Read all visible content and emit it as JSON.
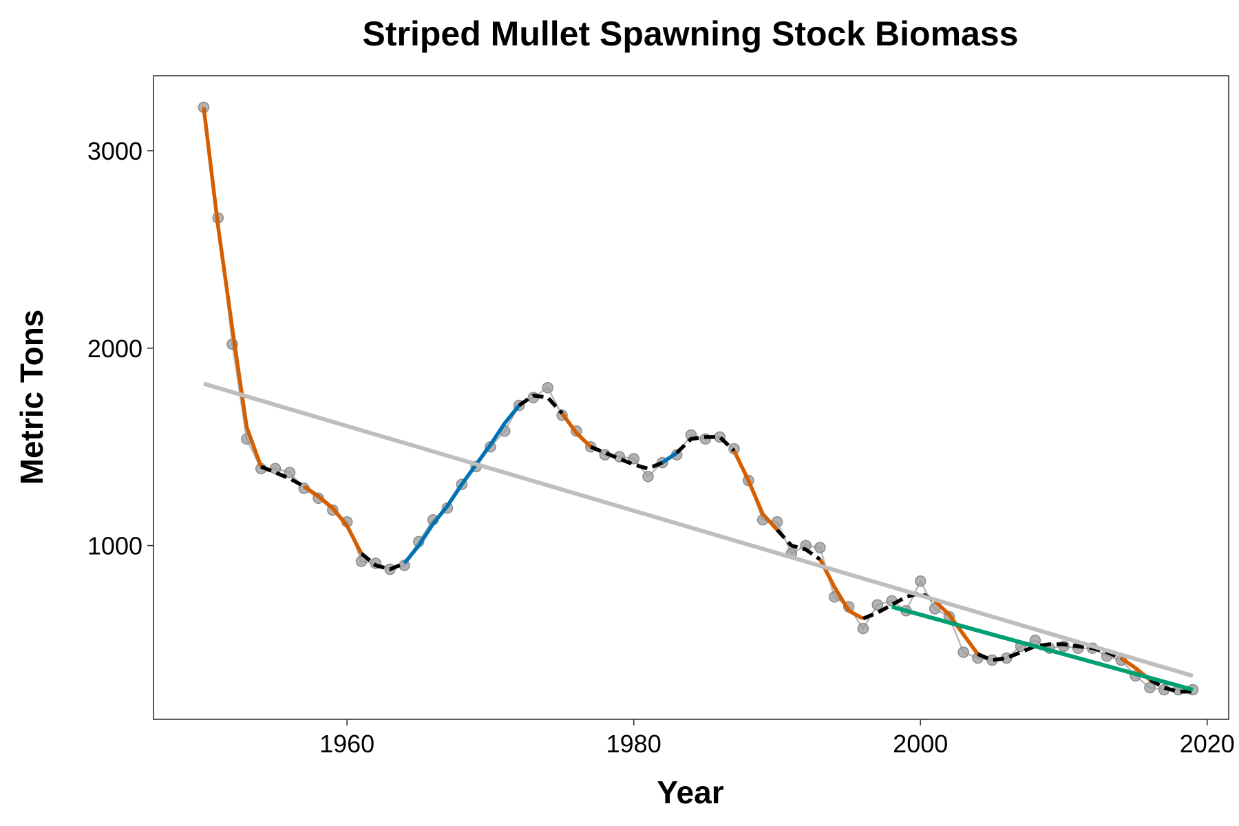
{
  "chart_data": {
    "type": "line",
    "title": "Striped Mullet Spawning Stock Biomass",
    "xlabel": "Year",
    "ylabel": "Metric Tons",
    "xlim": [
      1946.5,
      2021.5
    ],
    "ylim": [
      120,
      3380
    ],
    "xticks": [
      1960,
      1980,
      2000,
      2020
    ],
    "yticks": [
      1000,
      2000,
      3000
    ],
    "grid": false,
    "colors": {
      "observed": "#999999",
      "smooth_stable": "#000000",
      "smooth_decreasing": "#D55E00",
      "smooth_increasing": "#0072B2",
      "long_term_trend": "#BEBEBE",
      "recent_trend": "#009E73"
    },
    "observed": {
      "x": [
        1950,
        1951,
        1952,
        1953,
        1954,
        1955,
        1956,
        1957,
        1958,
        1959,
        1960,
        1961,
        1962,
        1963,
        1964,
        1965,
        1966,
        1967,
        1968,
        1969,
        1970,
        1971,
        1972,
        1973,
        1974,
        1975,
        1976,
        1977,
        1978,
        1979,
        1980,
        1981,
        1982,
        1983,
        1984,
        1985,
        1986,
        1987,
        1988,
        1989,
        1990,
        1991,
        1992,
        1993,
        1994,
        1995,
        1996,
        1997,
        1998,
        1999,
        2000,
        2001,
        2002,
        2003,
        2004,
        2005,
        2006,
        2007,
        2008,
        2009,
        2010,
        2011,
        2012,
        2013,
        2014,
        2015,
        2016,
        2017,
        2018,
        2019
      ],
      "y": [
        3220,
        2660,
        2020,
        1540,
        1390,
        1390,
        1370,
        1290,
        1240,
        1180,
        1120,
        920,
        910,
        880,
        900,
        1020,
        1130,
        1190,
        1310,
        1400,
        1500,
        1580,
        1710,
        1750,
        1800,
        1660,
        1580,
        1500,
        1460,
        1450,
        1440,
        1350,
        1420,
        1460,
        1560,
        1540,
        1550,
        1490,
        1330,
        1130,
        1120,
        960,
        1000,
        990,
        740,
        690,
        580,
        700,
        720,
        670,
        820,
        680,
        640,
        460,
        430,
        420,
        430,
        490,
        520,
        480,
        490,
        480,
        480,
        440,
        420,
        340,
        280,
        270,
        270,
        270
      ]
    },
    "smooth": {
      "x": [
        1950,
        1951,
        1952,
        1953,
        1954,
        1955,
        1956,
        1957,
        1958,
        1959,
        1960,
        1961,
        1962,
        1963,
        1964,
        1965,
        1966,
        1967,
        1968,
        1969,
        1970,
        1971,
        1972,
        1973,
        1974,
        1975,
        1976,
        1977,
        1978,
        1979,
        1980,
        1981,
        1982,
        1983,
        1984,
        1985,
        1986,
        1987,
        1988,
        1989,
        1990,
        1991,
        1992,
        1993,
        1994,
        1995,
        1996,
        1997,
        1998,
        1999,
        2000,
        2001,
        2002,
        2003,
        2004,
        2005,
        2006,
        2007,
        2008,
        2009,
        2010,
        2011,
        2012,
        2013,
        2014,
        2015,
        2016,
        2017,
        2018,
        2019
      ],
      "y": [
        3220,
        2620,
        2100,
        1600,
        1400,
        1370,
        1340,
        1300,
        1250,
        1190,
        1100,
        960,
        900,
        880,
        910,
        1000,
        1110,
        1200,
        1310,
        1410,
        1510,
        1620,
        1710,
        1760,
        1750,
        1670,
        1570,
        1500,
        1470,
        1440,
        1410,
        1390,
        1420,
        1470,
        1540,
        1550,
        1550,
        1480,
        1330,
        1160,
        1080,
        1000,
        980,
        930,
        790,
        670,
        630,
        660,
        700,
        740,
        760,
        720,
        650,
        550,
        450,
        420,
        430,
        460,
        490,
        500,
        500,
        490,
        480,
        460,
        430,
        380,
        320,
        280,
        260,
        260
      ],
      "segments": [
        {
          "trend": "decreasing",
          "from": 1950,
          "to": 1954
        },
        {
          "trend": "stable",
          "from": 1954,
          "to": 1957
        },
        {
          "trend": "decreasing",
          "from": 1957,
          "to": 1961
        },
        {
          "trend": "stable",
          "from": 1961,
          "to": 1964
        },
        {
          "trend": "increasing",
          "from": 1964,
          "to": 1972
        },
        {
          "trend": "stable",
          "from": 1972,
          "to": 1975
        },
        {
          "trend": "decreasing",
          "from": 1975,
          "to": 1977
        },
        {
          "trend": "stable",
          "from": 1977,
          "to": 1982
        },
        {
          "trend": "increasing",
          "from": 1982,
          "to": 1983
        },
        {
          "trend": "stable",
          "from": 1983,
          "to": 1987
        },
        {
          "trend": "decreasing",
          "from": 1987,
          "to": 1990
        },
        {
          "trend": "stable",
          "from": 1990,
          "to": 1993
        },
        {
          "trend": "decreasing",
          "from": 1993,
          "to": 1996
        },
        {
          "trend": "stable",
          "from": 1996,
          "to": 2001
        },
        {
          "trend": "decreasing",
          "from": 2001,
          "to": 2004
        },
        {
          "trend": "stable",
          "from": 2004,
          "to": 2014
        },
        {
          "trend": "decreasing",
          "from": 2014,
          "to": 2016
        },
        {
          "trend": "stable",
          "from": 2016,
          "to": 2019
        }
      ]
    },
    "long_term_trend": {
      "x": [
        1950,
        2019
      ],
      "y": [
        1820,
        340
      ]
    },
    "recent_trend": {
      "x": [
        1998,
        2019
      ],
      "y": [
        690,
        270
      ]
    }
  }
}
